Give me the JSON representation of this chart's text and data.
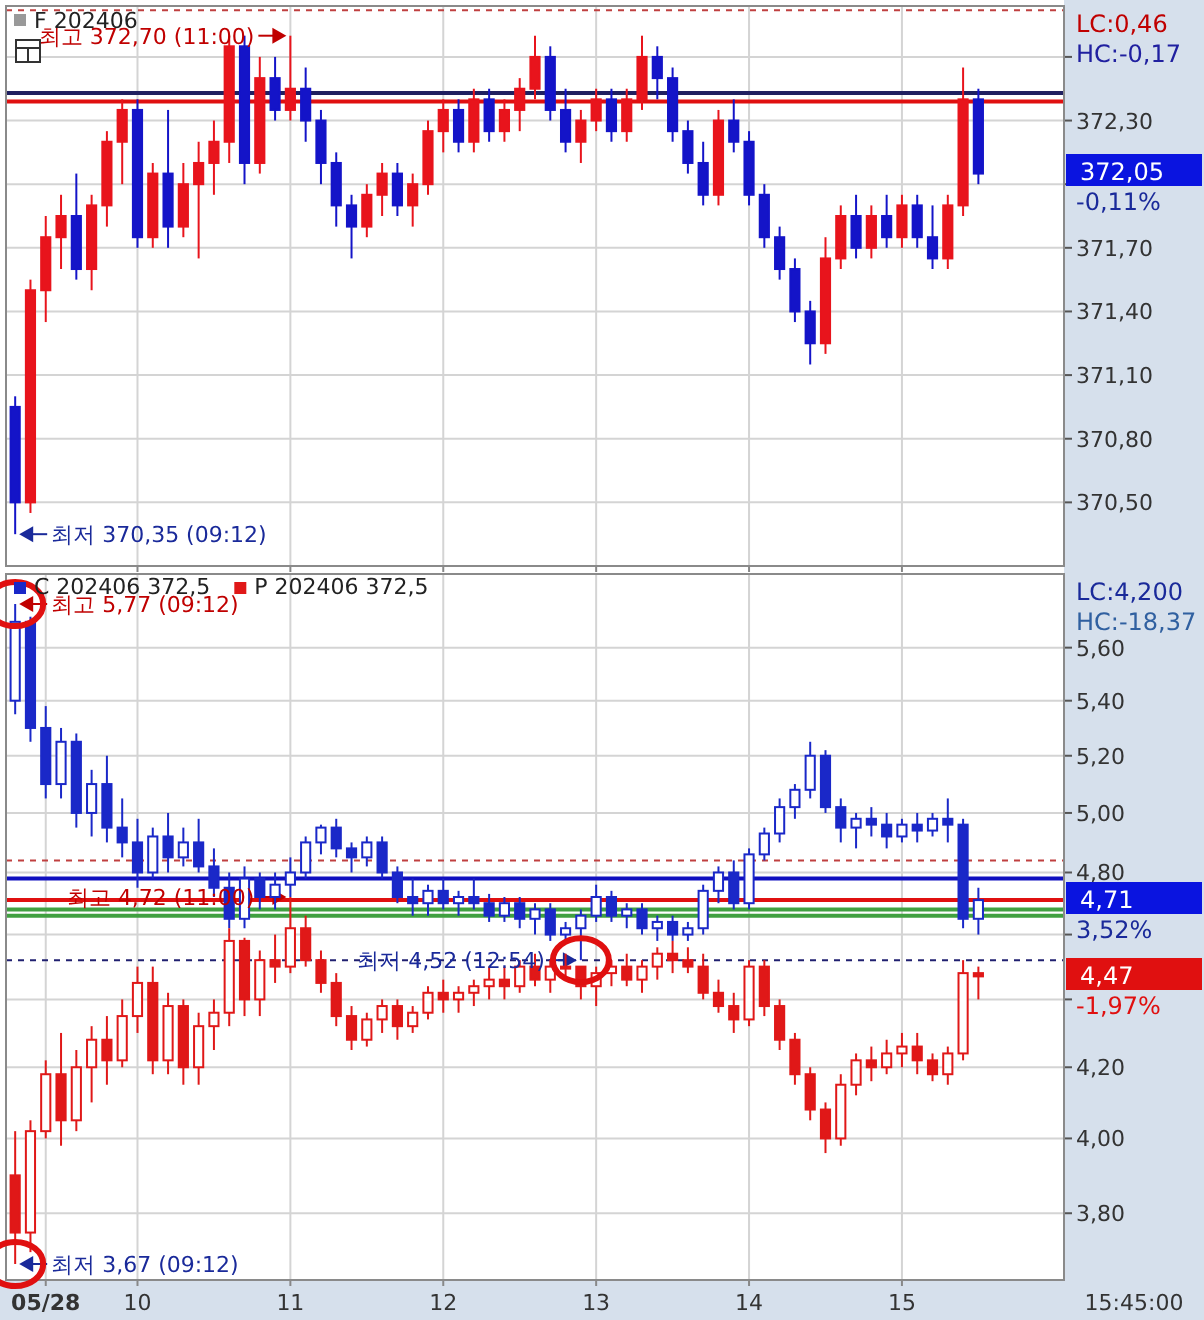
{
  "chart_data": [
    {
      "type": "candlestick",
      "title": "F 202406",
      "tick_labels": "y",
      "grid": true,
      "x": [
        9.2,
        9.3,
        9.4,
        9.5,
        9.6,
        9.7,
        9.8,
        9.9,
        10.0,
        10.1,
        10.2,
        10.3,
        10.4,
        10.5,
        10.6,
        10.7,
        10.8,
        10.9,
        11.0,
        11.1,
        11.2,
        11.3,
        11.4,
        11.5,
        11.6,
        11.7,
        11.8,
        11.9,
        12.0,
        12.1,
        12.2,
        12.3,
        12.4,
        12.5,
        12.6,
        12.7,
        12.8,
        12.9,
        13.0,
        13.1,
        13.2,
        13.3,
        13.4,
        13.5,
        13.6,
        13.7,
        13.8,
        13.9,
        14.0,
        14.1,
        14.2,
        14.3,
        14.4,
        14.5,
        14.6,
        14.7,
        14.8,
        14.9,
        15.0,
        15.1,
        15.2,
        15.3,
        15.4,
        15.5
      ],
      "colors": [
        "#1414c8",
        "#e8141c",
        "#e8141c",
        "#e8141c",
        "#1414c8",
        "#e8141c",
        "#e8141c",
        "#e8141c",
        "#1414c8",
        "#e8141c",
        "#1414c8",
        "#e8141c",
        "#e8141c",
        "#e8141c",
        "#e8141c",
        "#1414c8",
        "#e8141c",
        "#1414c8",
        "#e8141c",
        "#1414c8",
        "#1414c8",
        "#1414c8",
        "#1414c8",
        "#e8141c",
        "#e8141c",
        "#1414c8",
        "#e8141c",
        "#e8141c",
        "#e8141c",
        "#1414c8",
        "#e8141c",
        "#1414c8",
        "#e8141c",
        "#e8141c",
        "#e8141c",
        "#1414c8",
        "#1414c8",
        "#e8141c",
        "#e8141c",
        "#1414c8",
        "#e8141c",
        "#e8141c",
        "#1414c8",
        "#1414c8",
        "#1414c8",
        "#1414c8",
        "#e8141c",
        "#1414c8",
        "#1414c8",
        "#1414c8",
        "#1414c8",
        "#1414c8",
        "#1414c8",
        "#e8141c",
        "#e8141c",
        "#1414c8",
        "#e8141c",
        "#1414c8",
        "#e8141c",
        "#1414c8",
        "#1414c8",
        "#e8141c",
        "#e8141c",
        "#1414c8"
      ],
      "ohlc": [
        [
          370.95,
          371.0,
          370.35,
          370.5
        ],
        [
          370.5,
          371.55,
          370.45,
          371.5
        ],
        [
          371.5,
          371.85,
          371.35,
          371.75
        ],
        [
          371.75,
          371.95,
          371.6,
          371.85
        ],
        [
          371.85,
          372.05,
          371.55,
          371.6
        ],
        [
          371.6,
          371.95,
          371.5,
          371.9
        ],
        [
          371.9,
          372.25,
          371.8,
          372.2
        ],
        [
          372.2,
          372.4,
          372.0,
          372.35
        ],
        [
          372.35,
          372.4,
          371.7,
          371.75
        ],
        [
          371.75,
          372.1,
          371.7,
          372.05
        ],
        [
          372.05,
          372.35,
          371.7,
          371.8
        ],
        [
          371.8,
          372.1,
          371.75,
          372.0
        ],
        [
          372.0,
          372.2,
          371.65,
          372.1
        ],
        [
          372.1,
          372.3,
          371.95,
          372.2
        ],
        [
          372.2,
          372.7,
          372.1,
          372.65
        ],
        [
          372.65,
          372.7,
          372.0,
          372.1
        ],
        [
          372.1,
          372.6,
          372.05,
          372.5
        ],
        [
          372.5,
          372.6,
          372.3,
          372.35
        ],
        [
          372.35,
          372.7,
          372.3,
          372.45
        ],
        [
          372.45,
          372.55,
          372.2,
          372.3
        ],
        [
          372.3,
          372.35,
          372.0,
          372.1
        ],
        [
          372.1,
          372.15,
          371.8,
          371.9
        ],
        [
          371.9,
          371.95,
          371.65,
          371.8
        ],
        [
          371.8,
          372.0,
          371.75,
          371.95
        ],
        [
          371.95,
          372.1,
          371.85,
          372.05
        ],
        [
          372.05,
          372.1,
          371.85,
          371.9
        ],
        [
          371.9,
          372.05,
          371.8,
          372.0
        ],
        [
          372.0,
          372.3,
          371.95,
          372.25
        ],
        [
          372.25,
          372.4,
          372.15,
          372.35
        ],
        [
          372.35,
          372.4,
          372.15,
          372.2
        ],
        [
          372.2,
          372.45,
          372.15,
          372.4
        ],
        [
          372.4,
          372.45,
          372.2,
          372.25
        ],
        [
          372.25,
          372.4,
          372.2,
          372.35
        ],
        [
          372.35,
          372.5,
          372.25,
          372.45
        ],
        [
          372.45,
          372.7,
          372.4,
          372.6
        ],
        [
          372.6,
          372.65,
          372.3,
          372.35
        ],
        [
          372.35,
          372.45,
          372.15,
          372.2
        ],
        [
          372.2,
          372.35,
          372.1,
          372.3
        ],
        [
          372.3,
          372.45,
          372.25,
          372.4
        ],
        [
          372.4,
          372.45,
          372.2,
          372.25
        ],
        [
          372.25,
          372.45,
          372.2,
          372.4
        ],
        [
          372.4,
          372.7,
          372.35,
          372.6
        ],
        [
          372.6,
          372.65,
          372.4,
          372.5
        ],
        [
          372.5,
          372.55,
          372.2,
          372.25
        ],
        [
          372.25,
          372.3,
          372.05,
          372.1
        ],
        [
          372.1,
          372.2,
          371.9,
          371.95
        ],
        [
          371.95,
          372.35,
          371.9,
          372.3
        ],
        [
          372.3,
          372.4,
          372.15,
          372.2
        ],
        [
          372.2,
          372.25,
          371.9,
          371.95
        ],
        [
          371.95,
          372.0,
          371.7,
          371.75
        ],
        [
          371.75,
          371.8,
          371.55,
          371.6
        ],
        [
          371.6,
          371.65,
          371.35,
          371.4
        ],
        [
          371.4,
          371.45,
          371.15,
          371.25
        ],
        [
          371.25,
          371.75,
          371.2,
          371.65
        ],
        [
          371.65,
          371.9,
          371.6,
          371.85
        ],
        [
          371.85,
          371.95,
          371.65,
          371.7
        ],
        [
          371.7,
          371.9,
          371.65,
          371.85
        ],
        [
          371.85,
          371.95,
          371.7,
          371.75
        ],
        [
          371.75,
          371.95,
          371.7,
          371.9
        ],
        [
          371.9,
          371.95,
          371.7,
          371.75
        ],
        [
          371.75,
          371.9,
          371.6,
          371.65
        ],
        [
          371.65,
          371.95,
          371.6,
          371.9
        ],
        [
          371.9,
          372.55,
          371.85,
          372.4
        ],
        [
          372.4,
          372.45,
          372.0,
          372.05
        ]
      ],
      "xlim": [
        9.14,
        16.06
      ],
      "xticks": [
        10,
        11,
        12,
        13,
        14,
        15
      ],
      "ylim": [
        370.2,
        372.84
      ],
      "yticks": [
        {
          "value": 370.5,
          "label": "370,50"
        },
        {
          "value": 370.8,
          "label": "370,80"
        },
        {
          "value": 371.1,
          "label": "371,10"
        },
        {
          "value": 371.4,
          "label": "371,40"
        },
        {
          "value": 371.7,
          "label": "371,70"
        },
        {
          "value": 372.0,
          "label": null
        },
        {
          "value": 372.3,
          "label": "372,30"
        },
        {
          "value": 372.6,
          "label": null
        }
      ],
      "ref_lines": [
        {
          "axis": "y",
          "value": 372.43,
          "color": "#202060"
        },
        {
          "axis": "y",
          "value": 372.39,
          "color": "#e01010"
        },
        {
          "axis": "y",
          "value": 372.82,
          "color": "#c04040",
          "line_style": "dashed"
        }
      ],
      "annotations": [
        {
          "text": "최고 372,70 (11:00)",
          "x": 11.0,
          "y": 372.7
        },
        {
          "text": "최저 370,35 (09:12)",
          "x": 9.2,
          "y": 370.35
        },
        "LC:0,46",
        "HC:-0,17",
        "372,05",
        "-0,11%"
      ]
    },
    {
      "type": "candlestick",
      "log": "y",
      "grid": true,
      "legend": "top left",
      "x": [
        9.2,
        9.3,
        9.4,
        9.5,
        9.6,
        9.7,
        9.8,
        9.9,
        10.0,
        10.1,
        10.2,
        10.3,
        10.4,
        10.5,
        10.6,
        10.7,
        10.8,
        10.9,
        11.0,
        11.1,
        11.2,
        11.3,
        11.4,
        11.5,
        11.6,
        11.7,
        11.8,
        11.9,
        12.0,
        12.1,
        12.2,
        12.3,
        12.4,
        12.5,
        12.6,
        12.7,
        12.8,
        12.9,
        13.0,
        13.1,
        13.2,
        13.3,
        13.4,
        13.5,
        13.6,
        13.7,
        13.8,
        13.9,
        14.0,
        14.1,
        14.2,
        14.3,
        14.4,
        14.5,
        14.6,
        14.7,
        14.8,
        14.9,
        15.0,
        15.1,
        15.2,
        15.3,
        15.4,
        15.5
      ],
      "series": [
        {
          "name": "C 202406 372,5",
          "color": "#1a28c8",
          "ohlc": [
            [
              5.4,
              5.77,
              5.35,
              5.7
            ],
            [
              5.7,
              5.72,
              5.25,
              5.3
            ],
            [
              5.3,
              5.38,
              5.05,
              5.1
            ],
            [
              5.1,
              5.3,
              5.05,
              5.25
            ],
            [
              5.25,
              5.28,
              4.95,
              5.0
            ],
            [
              5.0,
              5.15,
              4.92,
              5.1
            ],
            [
              5.1,
              5.2,
              4.9,
              4.95
            ],
            [
              4.95,
              5.05,
              4.85,
              4.9
            ],
            [
              4.9,
              4.98,
              4.75,
              4.8
            ],
            [
              4.8,
              4.95,
              4.78,
              4.92
            ],
            [
              4.92,
              5.0,
              4.8,
              4.85
            ],
            [
              4.85,
              4.95,
              4.82,
              4.9
            ],
            [
              4.9,
              4.98,
              4.8,
              4.82
            ],
            [
              4.82,
              4.88,
              4.72,
              4.75
            ],
            [
              4.75,
              4.8,
              4.62,
              4.65
            ],
            [
              4.65,
              4.82,
              4.62,
              4.78
            ],
            [
              4.78,
              4.8,
              4.68,
              4.72
            ],
            [
              4.72,
              4.8,
              4.68,
              4.76
            ],
            [
              4.76,
              4.85,
              4.72,
              4.8
            ],
            [
              4.8,
              4.92,
              4.78,
              4.9
            ],
            [
              4.9,
              4.96,
              4.86,
              4.95
            ],
            [
              4.95,
              4.98,
              4.85,
              4.88
            ],
            [
              4.88,
              4.9,
              4.8,
              4.85
            ],
            [
              4.85,
              4.92,
              4.82,
              4.9
            ],
            [
              4.9,
              4.92,
              4.78,
              4.8
            ],
            [
              4.8,
              4.82,
              4.7,
              4.72
            ],
            [
              4.72,
              4.78,
              4.66,
              4.7
            ],
            [
              4.7,
              4.76,
              4.66,
              4.74
            ],
            [
              4.74,
              4.78,
              4.68,
              4.7
            ],
            [
              4.7,
              4.74,
              4.66,
              4.72
            ],
            [
              4.72,
              4.78,
              4.68,
              4.7
            ],
            [
              4.7,
              4.73,
              4.64,
              4.66
            ],
            [
              4.66,
              4.72,
              4.64,
              4.7
            ],
            [
              4.7,
              4.72,
              4.62,
              4.65
            ],
            [
              4.65,
              4.7,
              4.6,
              4.68
            ],
            [
              4.68,
              4.7,
              4.58,
              4.6
            ],
            [
              4.6,
              4.64,
              4.58,
              4.62
            ],
            [
              4.62,
              4.68,
              4.52,
              4.66
            ],
            [
              4.66,
              4.76,
              4.64,
              4.72
            ],
            [
              4.72,
              4.74,
              4.64,
              4.66
            ],
            [
              4.66,
              4.7,
              4.62,
              4.68
            ],
            [
              4.68,
              4.7,
              4.6,
              4.62
            ],
            [
              4.62,
              4.66,
              4.58,
              4.64
            ],
            [
              4.64,
              4.66,
              4.58,
              4.6
            ],
            [
              4.6,
              4.64,
              4.58,
              4.62
            ],
            [
              4.62,
              4.76,
              4.6,
              4.74
            ],
            [
              4.74,
              4.82,
              4.7,
              4.8
            ],
            [
              4.8,
              4.84,
              4.68,
              4.7
            ],
            [
              4.7,
              4.88,
              4.68,
              4.86
            ],
            [
              4.86,
              4.95,
              4.84,
              4.93
            ],
            [
              4.93,
              5.05,
              4.9,
              5.02
            ],
            [
              5.02,
              5.1,
              4.98,
              5.08
            ],
            [
              5.08,
              5.25,
              5.05,
              5.2
            ],
            [
              5.2,
              5.22,
              5.0,
              5.02
            ],
            [
              5.02,
              5.05,
              4.9,
              4.95
            ],
            [
              4.95,
              5.0,
              4.88,
              4.98
            ],
            [
              4.98,
              5.02,
              4.92,
              4.96
            ],
            [
              4.96,
              5.0,
              4.88,
              4.92
            ],
            [
              4.92,
              4.98,
              4.9,
              4.96
            ],
            [
              4.96,
              5.0,
              4.9,
              4.94
            ],
            [
              4.94,
              5.0,
              4.92,
              4.98
            ],
            [
              4.98,
              5.05,
              4.9,
              4.96
            ],
            [
              4.96,
              4.98,
              4.62,
              4.65
            ],
            [
              4.65,
              4.75,
              4.6,
              4.71
            ]
          ]
        },
        {
          "name": "P 202406 372,5",
          "color": "#e01818",
          "ohlc": [
            [
              3.9,
              4.02,
              3.67,
              3.75
            ],
            [
              3.75,
              4.05,
              3.7,
              4.02
            ],
            [
              4.02,
              4.22,
              4.0,
              4.18
            ],
            [
              4.18,
              4.3,
              3.98,
              4.05
            ],
            [
              4.05,
              4.25,
              4.02,
              4.2
            ],
            [
              4.2,
              4.32,
              4.1,
              4.28
            ],
            [
              4.28,
              4.35,
              4.15,
              4.22
            ],
            [
              4.22,
              4.4,
              4.2,
              4.35
            ],
            [
              4.35,
              4.5,
              4.3,
              4.45
            ],
            [
              4.45,
              4.5,
              4.18,
              4.22
            ],
            [
              4.22,
              4.42,
              4.18,
              4.38
            ],
            [
              4.38,
              4.4,
              4.15,
              4.2
            ],
            [
              4.2,
              4.36,
              4.15,
              4.32
            ],
            [
              4.32,
              4.4,
              4.25,
              4.36
            ],
            [
              4.36,
              4.62,
              4.32,
              4.58
            ],
            [
              4.58,
              4.59,
              4.35,
              4.4
            ],
            [
              4.4,
              4.55,
              4.35,
              4.52
            ],
            [
              4.52,
              4.6,
              4.45,
              4.5
            ],
            [
              4.5,
              4.72,
              4.48,
              4.62
            ],
            [
              4.62,
              4.66,
              4.5,
              4.52
            ],
            [
              4.52,
              4.55,
              4.42,
              4.45
            ],
            [
              4.45,
              4.48,
              4.32,
              4.35
            ],
            [
              4.35,
              4.38,
              4.25,
              4.28
            ],
            [
              4.28,
              4.36,
              4.26,
              4.34
            ],
            [
              4.34,
              4.4,
              4.3,
              4.38
            ],
            [
              4.38,
              4.4,
              4.28,
              4.32
            ],
            [
              4.32,
              4.38,
              4.3,
              4.36
            ],
            [
              4.36,
              4.44,
              4.34,
              4.42
            ],
            [
              4.42,
              4.46,
              4.36,
              4.4
            ],
            [
              4.4,
              4.44,
              4.36,
              4.42
            ],
            [
              4.42,
              4.46,
              4.38,
              4.44
            ],
            [
              4.44,
              4.5,
              4.4,
              4.46
            ],
            [
              4.46,
              4.5,
              4.4,
              4.44
            ],
            [
              4.44,
              4.52,
              4.42,
              4.5
            ],
            [
              4.5,
              4.54,
              4.44,
              4.46
            ],
            [
              4.46,
              4.52,
              4.42,
              4.5
            ],
            [
              4.5,
              4.54,
              4.46,
              4.5
            ],
            [
              4.5,
              4.5,
              4.4,
              4.44
            ],
            [
              4.44,
              4.5,
              4.38,
              4.48
            ],
            [
              4.48,
              4.52,
              4.44,
              4.5
            ],
            [
              4.5,
              4.54,
              4.44,
              4.46
            ],
            [
              4.46,
              4.52,
              4.42,
              4.5
            ],
            [
              4.5,
              4.56,
              4.46,
              4.54
            ],
            [
              4.54,
              4.58,
              4.48,
              4.52
            ],
            [
              4.52,
              4.56,
              4.48,
              4.5
            ],
            [
              4.5,
              4.54,
              4.4,
              4.42
            ],
            [
              4.42,
              4.46,
              4.36,
              4.38
            ],
            [
              4.38,
              4.42,
              4.3,
              4.34
            ],
            [
              4.34,
              4.52,
              4.32,
              4.5
            ],
            [
              4.5,
              4.52,
              4.35,
              4.38
            ],
            [
              4.38,
              4.4,
              4.25,
              4.28
            ],
            [
              4.28,
              4.3,
              4.15,
              4.18
            ],
            [
              4.18,
              4.2,
              4.05,
              4.08
            ],
            [
              4.08,
              4.1,
              3.96,
              4.0
            ],
            [
              4.0,
              4.18,
              3.98,
              4.15
            ],
            [
              4.15,
              4.24,
              4.12,
              4.22
            ],
            [
              4.22,
              4.26,
              4.16,
              4.2
            ],
            [
              4.2,
              4.28,
              4.18,
              4.24
            ],
            [
              4.24,
              4.3,
              4.2,
              4.26
            ],
            [
              4.26,
              4.3,
              4.18,
              4.22
            ],
            [
              4.22,
              4.24,
              4.16,
              4.18
            ],
            [
              4.18,
              4.26,
              4.15,
              4.24
            ],
            [
              4.24,
              4.52,
              4.22,
              4.48
            ],
            [
              4.48,
              4.5,
              4.4,
              4.47
            ]
          ]
        }
      ],
      "xlim": [
        9.14,
        16.06
      ],
      "xticks": [
        {
          "value": 9.4,
          "label": "05/28"
        },
        10,
        11,
        12,
        13,
        14,
        15
      ],
      "ylim": [
        3.63,
        5.89
      ],
      "yticks": [
        {
          "value": 3.8,
          "label": "3,80"
        },
        {
          "value": 4.0,
          "label": "4,00"
        },
        {
          "value": 4.2,
          "label": "4,20"
        },
        {
          "value": 4.4,
          "label": null
        },
        {
          "value": 4.6,
          "label": null
        },
        {
          "value": 4.8,
          "label": "4,80"
        },
        {
          "value": 5.0,
          "label": "5,00"
        },
        {
          "value": 5.2,
          "label": "5,20"
        },
        {
          "value": 5.4,
          "label": "5,40"
        },
        {
          "value": 5.6,
          "label": "5,60"
        }
      ],
      "ref_lines": [
        {
          "axis": "y",
          "value": 4.84,
          "color": "#c04040",
          "line_style": "dashed"
        },
        {
          "axis": "y",
          "value": 4.78,
          "color": "#1010c0"
        },
        {
          "axis": "y",
          "value": 4.71,
          "color": "#e01010"
        },
        {
          "axis": "y",
          "value": 4.68,
          "color": "#40a040"
        },
        {
          "axis": "y",
          "value": 4.66,
          "color": "#40a040"
        },
        {
          "axis": "y",
          "value": 4.52,
          "color": "#202070",
          "line_style": "dashed"
        }
      ],
      "annotations": [
        {
          "text": "최고 5,77 (09:12)",
          "x": 9.2,
          "y": 5.77
        },
        {
          "text": "최저 3,67 (09:12)",
          "x": 9.2,
          "y": 3.67
        },
        {
          "text": "최고 4,72 (11:00)",
          "x": 11.0,
          "y": 4.72
        },
        {
          "text": "최저 4,52 (12:54)",
          "x": 12.9,
          "y": 4.52
        },
        "LC:4,200",
        "HC:-18,37",
        "4,71",
        "3,52%",
        "4,47",
        "-1,97%",
        "15:45:00"
      ]
    }
  ]
}
